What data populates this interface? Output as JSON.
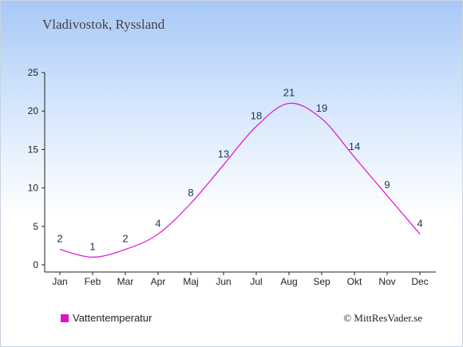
{
  "title": "Vladivostok, Ryssland",
  "legend": {
    "label": "Vattentemperatur"
  },
  "credit": "© MittResVader.se",
  "colors": {
    "series": "#dd11cc",
    "axis": "#222222"
  },
  "chart_data": {
    "type": "line",
    "title": "Vladivostok, Ryssland",
    "categories": [
      "Jan",
      "Feb",
      "Mar",
      "Apr",
      "Maj",
      "Jun",
      "Jul",
      "Aug",
      "Sep",
      "Okt",
      "Nov",
      "Dec"
    ],
    "series": [
      {
        "name": "Vattentemperatur",
        "values": [
          2,
          1,
          2,
          4,
          8,
          13,
          18,
          21,
          19,
          14,
          9,
          4
        ]
      }
    ],
    "data_labels": [
      "2",
      "1",
      "2",
      "4",
      "8",
      "13",
      "18",
      "21",
      "19",
      "14",
      "9",
      "4"
    ],
    "ylim": [
      0,
      25
    ],
    "yticks": [
      "0",
      "5",
      "10",
      "15",
      "20",
      "25"
    ],
    "grid": false,
    "legend_position": "bottom-left"
  }
}
